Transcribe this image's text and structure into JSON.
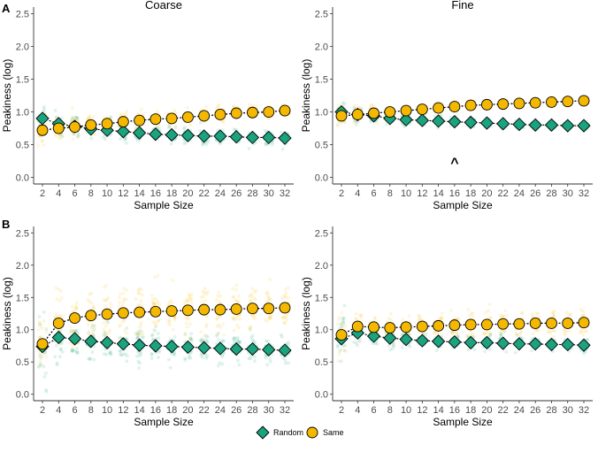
{
  "colors": {
    "random": "#1aa37e",
    "same": "#f5b800",
    "edge": "#000000"
  },
  "legend": {
    "items": [
      {
        "label": "Random",
        "color": "#1aa37e",
        "shape": "diamond"
      },
      {
        "label": "Same",
        "color": "#f5b800",
        "shape": "circle"
      }
    ]
  },
  "rows": [
    {
      "letter": "A"
    },
    {
      "letter": "B"
    }
  ],
  "chart_data": [
    {
      "type": "scatter",
      "id": "A-coarse",
      "row": "A",
      "column_title": "Coarse",
      "xlabel": "Sample Size",
      "ylabel": "Peakiness (log)",
      "x": [
        2,
        4,
        6,
        8,
        10,
        12,
        14,
        16,
        18,
        20,
        22,
        24,
        26,
        28,
        30,
        32
      ],
      "ylim": [
        -0.1,
        2.6
      ],
      "yticks": [
        "0.0",
        "0.5",
        "1.0",
        "1.5",
        "2.0",
        "2.5"
      ],
      "annotation": "",
      "series": [
        {
          "name": "Random",
          "mean": [
            0.9,
            0.82,
            0.78,
            0.74,
            0.72,
            0.7,
            0.68,
            0.66,
            0.65,
            0.64,
            0.63,
            0.63,
            0.62,
            0.61,
            0.61,
            0.6
          ],
          "spread": [
            0.28,
            0.22,
            0.2,
            0.18,
            0.17,
            0.16,
            0.15,
            0.14,
            0.14,
            0.13,
            0.12,
            0.12,
            0.12,
            0.11,
            0.11,
            0.11
          ]
        },
        {
          "name": "Same",
          "mean": [
            0.72,
            0.75,
            0.77,
            0.8,
            0.82,
            0.85,
            0.87,
            0.89,
            0.9,
            0.92,
            0.94,
            0.96,
            0.98,
            0.99,
            1.0,
            1.02
          ],
          "spread": [
            0.28,
            0.22,
            0.2,
            0.18,
            0.17,
            0.16,
            0.15,
            0.14,
            0.14,
            0.13,
            0.12,
            0.12,
            0.12,
            0.11,
            0.11,
            0.11
          ]
        }
      ]
    },
    {
      "type": "scatter",
      "id": "A-fine",
      "row": "A",
      "column_title": "Fine",
      "xlabel": "Sample Size",
      "ylabel": "Peakiness (log)",
      "x": [
        2,
        4,
        6,
        8,
        10,
        12,
        14,
        16,
        18,
        20,
        22,
        24,
        26,
        28,
        30,
        32
      ],
      "ylim": [
        -0.1,
        2.6
      ],
      "yticks": [
        "0.0",
        "0.5",
        "1.0",
        "1.5",
        "2.0",
        "2.5"
      ],
      "annotation": "^",
      "series": [
        {
          "name": "Random",
          "mean": [
            1.0,
            0.96,
            0.94,
            0.9,
            0.88,
            0.87,
            0.86,
            0.85,
            0.84,
            0.83,
            0.82,
            0.81,
            0.8,
            0.8,
            0.79,
            0.79
          ],
          "spread": [
            0.22,
            0.16,
            0.12,
            0.1,
            0.09,
            0.08,
            0.08,
            0.07,
            0.07,
            0.07,
            0.06,
            0.06,
            0.06,
            0.06,
            0.06,
            0.06
          ]
        },
        {
          "name": "Same",
          "mean": [
            0.94,
            0.96,
            0.98,
            1.0,
            1.02,
            1.04,
            1.06,
            1.08,
            1.1,
            1.11,
            1.12,
            1.13,
            1.14,
            1.15,
            1.16,
            1.17
          ],
          "spread": [
            0.2,
            0.14,
            0.11,
            0.09,
            0.08,
            0.08,
            0.07,
            0.07,
            0.07,
            0.06,
            0.06,
            0.06,
            0.06,
            0.06,
            0.06,
            0.06
          ]
        }
      ]
    },
    {
      "type": "scatter",
      "id": "B-coarse",
      "row": "B",
      "column_title": "",
      "xlabel": "Sample Size",
      "ylabel": "Peakiness (log)",
      "x": [
        2,
        4,
        6,
        8,
        10,
        12,
        14,
        16,
        18,
        20,
        22,
        24,
        26,
        28,
        30,
        32
      ],
      "ylim": [
        -0.1,
        2.6
      ],
      "yticks": [
        "0.0",
        "0.5",
        "1.0",
        "1.5",
        "2.0",
        "2.5"
      ],
      "annotation": "",
      "series": [
        {
          "name": "Random",
          "mean": [
            0.74,
            0.88,
            0.86,
            0.82,
            0.8,
            0.78,
            0.76,
            0.75,
            0.74,
            0.73,
            0.72,
            0.71,
            0.7,
            0.7,
            0.69,
            0.68
          ],
          "spread": [
            0.6,
            0.35,
            0.3,
            0.28,
            0.27,
            0.26,
            0.25,
            0.25,
            0.24,
            0.24,
            0.24,
            0.23,
            0.23,
            0.23,
            0.23,
            0.23
          ]
        },
        {
          "name": "Same",
          "mean": [
            0.78,
            1.1,
            1.18,
            1.22,
            1.24,
            1.26,
            1.27,
            1.28,
            1.29,
            1.3,
            1.31,
            1.31,
            1.32,
            1.33,
            1.33,
            1.34
          ],
          "spread": [
            0.45,
            0.55,
            0.55,
            0.5,
            0.48,
            0.46,
            0.44,
            0.43,
            0.42,
            0.41,
            0.4,
            0.4,
            0.39,
            0.39,
            0.38,
            0.38
          ]
        }
      ]
    },
    {
      "type": "scatter",
      "id": "B-fine",
      "row": "B",
      "column_title": "",
      "xlabel": "Sample Size",
      "ylabel": "Peakiness (log)",
      "x": [
        2,
        4,
        6,
        8,
        10,
        12,
        14,
        16,
        18,
        20,
        22,
        24,
        26,
        28,
        30,
        32
      ],
      "ylim": [
        -0.1,
        2.6
      ],
      "yticks": [
        "0.0",
        "0.5",
        "1.0",
        "1.5",
        "2.0",
        "2.5"
      ],
      "annotation": "",
      "series": [
        {
          "name": "Random",
          "mean": [
            0.86,
            0.95,
            0.9,
            0.87,
            0.85,
            0.83,
            0.82,
            0.81,
            0.8,
            0.8,
            0.79,
            0.78,
            0.78,
            0.77,
            0.77,
            0.76
          ],
          "spread": [
            0.45,
            0.22,
            0.17,
            0.15,
            0.14,
            0.13,
            0.13,
            0.12,
            0.12,
            0.12,
            0.11,
            0.11,
            0.11,
            0.11,
            0.11,
            0.11
          ]
        },
        {
          "name": "Same",
          "mean": [
            0.92,
            1.05,
            1.04,
            1.03,
            1.04,
            1.05,
            1.06,
            1.07,
            1.08,
            1.08,
            1.09,
            1.09,
            1.1,
            1.1,
            1.1,
            1.11
          ],
          "spread": [
            0.3,
            0.25,
            0.24,
            0.23,
            0.22,
            0.22,
            0.22,
            0.21,
            0.21,
            0.21,
            0.21,
            0.21,
            0.21,
            0.21,
            0.21,
            0.21
          ]
        }
      ]
    }
  ]
}
